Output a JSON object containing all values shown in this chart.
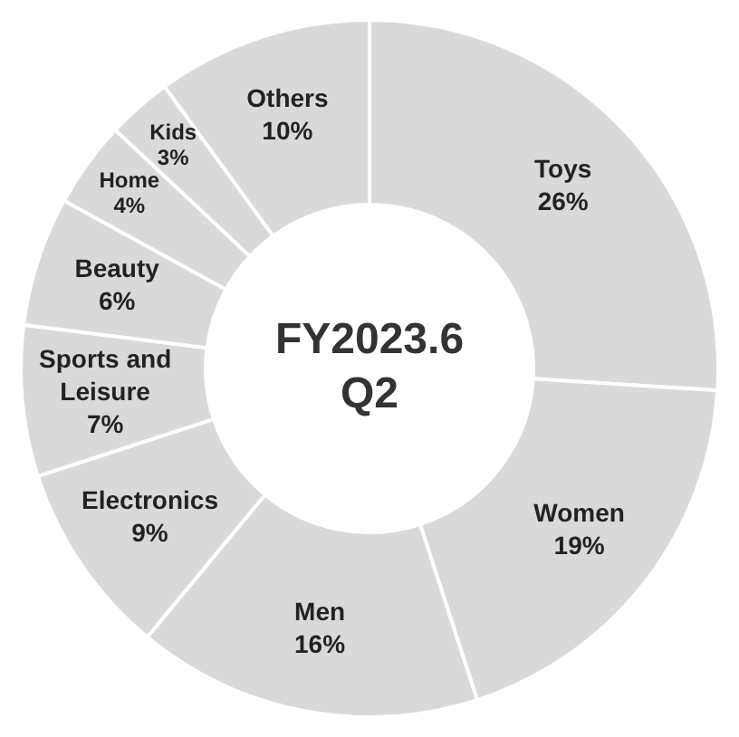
{
  "chart_data": {
    "type": "donut",
    "title": "FY2023.6 Q2",
    "categories": [
      "Toys",
      "Women",
      "Men",
      "Electronics",
      "Sports and Leisure",
      "Beauty",
      "Home",
      "Kids",
      "Others"
    ],
    "values": [
      26,
      19,
      16,
      9,
      7,
      6,
      4,
      3,
      10
    ],
    "value_labels": [
      "26%",
      "19%",
      "16%",
      "9%",
      "7%",
      "6%",
      "4%",
      "3%",
      "10%"
    ],
    "colors": [
      "#d9d9d9",
      "#d9d9d9",
      "#d9d9d9",
      "#d9d9d9",
      "#d9d9d9",
      "#d9d9d9",
      "#d9d9d9",
      "#d9d9d9",
      "#d9d9d9"
    ]
  }
}
